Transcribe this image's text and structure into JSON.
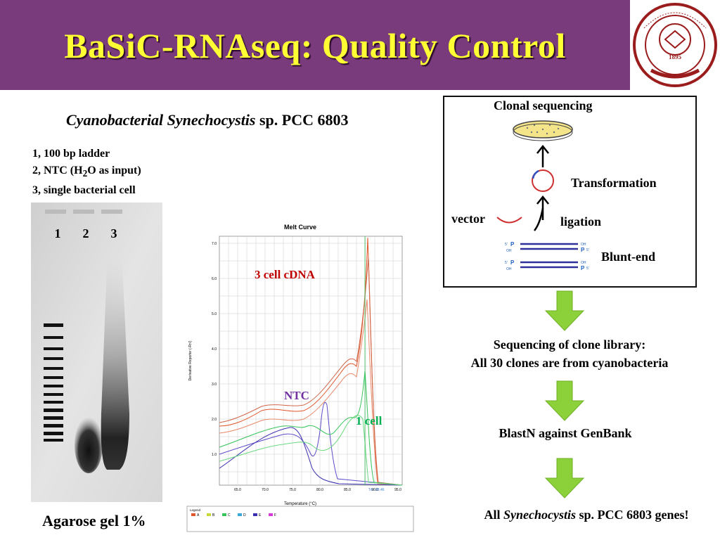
{
  "slide": {
    "title": "BaSiC-RNAseq: Quality Control",
    "logo": {
      "name": "Tianjin University seal",
      "text_top": "TIANJIN UNIVERSITY (PEIYANG UNIVERSITY)",
      "year": "1895",
      "colors": {
        "ring": "#9a1c1c",
        "bg": "#ffffff"
      }
    },
    "colors": {
      "header_bg": "#7a3b7c",
      "title": "#ffff33",
      "arrow_green": "#8cd13a"
    }
  },
  "subtitle": {
    "italic": "Cyanobacterial Synechocystis",
    "rest": " sp. PCC 6803"
  },
  "lanes_legend": {
    "l1": "1,  100 bp ladder",
    "l2_a": "2,  NTC (H",
    "l2_sub": "2",
    "l2_b": "O as input)",
    "l3": "3,  single bacterial cell"
  },
  "gel": {
    "lane_labels": [
      "1",
      "2",
      "3"
    ],
    "caption": "Agarose gel 1%"
  },
  "melt_curve": {
    "title": "Melt Curve",
    "xlabel": "Temperature (°C)",
    "ylabel": "Derivative Reporter (-Rn')",
    "yticks": [
      "7.0",
      "6.0",
      "5.0",
      "4.0",
      "3.0",
      "2.0",
      "1.0"
    ],
    "xticks": [
      "65.0",
      "70.0",
      "75.0",
      "80.0",
      "85.0",
      "90.0",
      "95.0"
    ],
    "tm_label": "Tm: 88.46",
    "legend_title": "Legend",
    "legend_items": [
      "A",
      "B",
      "C",
      "D",
      "E",
      "F"
    ],
    "legend_colors": [
      "#e0552a",
      "#c6d83a",
      "#36c35a",
      "#3aa8d8",
      "#3a2fb0",
      "#d63ad6"
    ],
    "annotations": {
      "cdna": "3 cell cDNA",
      "ntc": "NTC",
      "one_cell": "1 cell"
    },
    "annotation_colors": {
      "cdna": "#c00000",
      "ntc": "#7030a0",
      "one_cell": "#00b050"
    }
  },
  "flow": {
    "clonal": "Clonal sequencing",
    "transformation": "Transformation",
    "vector": "vector",
    "ligation": "ligation",
    "blunt": "Blunt-end",
    "dna_labels": {
      "five": "5'",
      "p": "P",
      "oh": "OH"
    }
  },
  "steps": {
    "seq_line1": "Sequencing of clone library:",
    "seq_line2": "All 30 clones are from cyanobacteria",
    "blast": "BlastN against GenBank",
    "final_prefix": "All ",
    "final_italic": "Synechocystis",
    "final_suffix": " sp. PCC 6803 genes!"
  }
}
